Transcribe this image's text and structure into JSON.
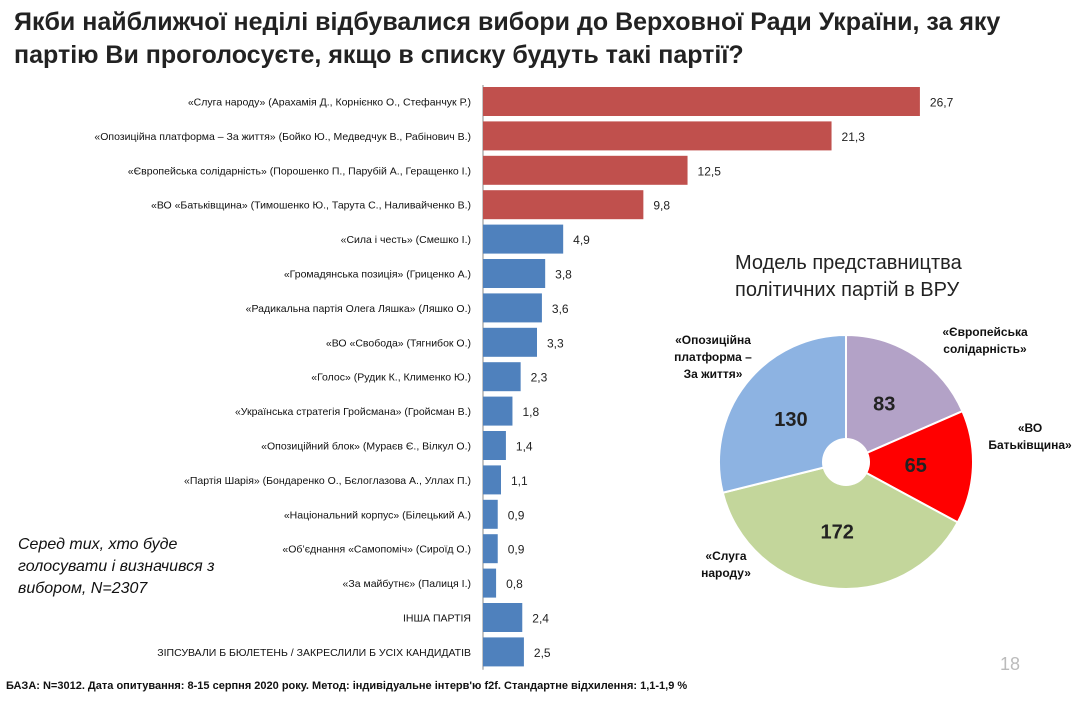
{
  "chart_data": [
    {
      "type": "bar",
      "orientation": "horizontal",
      "title": "Якби найближчої неділі відбувалися вибори до Верховної Ради України, за яку партію Ви проголосуєте, якщо в списку будуть такі партії?",
      "categories": [
        "«Слуга народу»  (Арахамія Д., Корнієнко О., Стефанчук Р.)",
        "«Опозиційна платформа – За життя» (Бойко Ю., Медведчук В., Рабінович В.)",
        "«Європейська солідарність» (Порошенко П., Парубій А., Геращенко І.)",
        "«ВО «Батьківщина» (Тимошенко Ю., Тарута С., Наливайченко В.)",
        "«Сила і честь»  (Смешко І.)",
        "«Громадянська позиція» (Гриценко А.)",
        "«Радикальна партія Олега Ляшка»  (Ляшко О.)",
        "«ВО  «Свобода» (Тягнибок О.)",
        "«Голос» (Рудик К., Клименко Ю.)",
        "«Українська стратегія Гройсмана» (Гройсман В.)",
        "«Опозиційний блок»  (Мураєв Є., Вілкул О.)",
        "«Партія Шарія»  (Бондаренко О.,  Бєлоглазова А., Уллах П.)",
        "«Національний корпус» (Білецький А.)",
        "«Об’єднання «Самопоміч»  (Сироїд О.)",
        "«За майбутнє» (Палиця І.)",
        "ІНША ПАРТІЯ",
        "ЗІПСУВАЛИ Б БЮЛЕТЕНЬ / ЗАКРЕСЛИЛИ Б УСІХ КАНДИДАТІВ"
      ],
      "values": [
        26.7,
        21.3,
        12.5,
        9.8,
        4.9,
        3.8,
        3.6,
        3.3,
        2.3,
        1.8,
        1.4,
        1.1,
        0.9,
        0.9,
        0.8,
        2.4,
        2.5
      ],
      "value_labels": [
        "26,7",
        "21,3",
        "12,5",
        "9,8",
        "4,9",
        "3,8",
        "3,6",
        "3,3",
        "2,3",
        "1,8",
        "1,4",
        "1,1",
        "0,9",
        "0,9",
        "0,8",
        "2,4",
        "2,5"
      ],
      "highlighted_count": 4,
      "colors": {
        "highlight": "#c0504d",
        "normal": "#4f81bd",
        "axis": "#888888"
      },
      "xlim": [
        0,
        27.5
      ]
    },
    {
      "type": "pie",
      "title": "Модель представництва політичних партій в ВРУ",
      "donut": true,
      "slices": [
        {
          "label": "«Європейська солідарність»",
          "value": 83,
          "color": "#b3a2c7"
        },
        {
          "label": "«ВО Батьківщина»",
          "value": 65,
          "color": "#ff0000"
        },
        {
          "label": "«Слуга народу»",
          "value": 172,
          "color": "#c3d69b"
        },
        {
          "label": "«Опозиційна платформа – За життя»",
          "value": 130,
          "color": "#8db3e2"
        }
      ],
      "label_lines": [
        [
          "«Європейська",
          "солідарність»"
        ],
        [
          "«ВО",
          "Батьківщина»"
        ],
        [
          "«Слуга",
          "народу»"
        ],
        [
          "«Опозиційна",
          "платформа –",
          "За життя»"
        ]
      ]
    }
  ],
  "note": "Серед тих, хто буде голосувати і визначився з вибором, N=2307",
  "footer": "БАЗА: N=3012. Дата опитування: 8-15 серпня  2020 року. Метод: індивідуальне інтерв'ю f2f. Стандартне відхилення: 1,1-1,9 %",
  "page_number": "18"
}
